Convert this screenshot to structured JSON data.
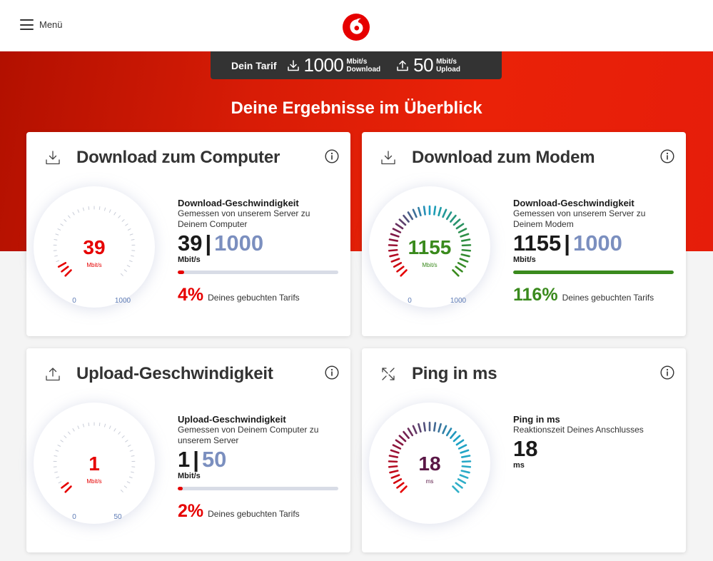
{
  "header": {
    "menu_label": "Menü",
    "logo_icon": "vodafone-logo"
  },
  "tariff": {
    "label": "Dein Tarif",
    "download_value": "1000",
    "download_unit": "Mbit/s",
    "download_label": "Download",
    "upload_value": "50",
    "upload_unit": "Mbit/s",
    "upload_label": "Upload"
  },
  "headline": "Deine Ergebnisse im Überblick",
  "cards": {
    "download_computer": {
      "title": "Download zum Computer",
      "icon": "download-icon",
      "gauge_value": "39",
      "gauge_unit": "Mbit/s",
      "gauge_min": "0",
      "gauge_max": "1000",
      "stat_title": "Download-Geschwindigkeit",
      "stat_sub": "Gemessen von unserem Server zu Deinem Computer",
      "value": "39",
      "max": "1000",
      "unit": "Mbit/s",
      "fill_fraction": 0.04,
      "percent": "4%",
      "percent_text": "Deines gebuchten Tarifs",
      "color": "#e60000"
    },
    "download_modem": {
      "title": "Download zum Modem",
      "icon": "download-icon",
      "gauge_value": "1155",
      "gauge_unit": "Mbit/s",
      "gauge_min": "0",
      "gauge_max": "1000",
      "stat_title": "Download-Geschwindigkeit",
      "stat_sub": "Gemessen von unserem Server zu Deinem Modem",
      "value": "1155",
      "max": "1000",
      "unit": "Mbit/s",
      "fill_fraction": 1.0,
      "percent": "116%",
      "percent_text": "Deines gebuchten Tarifs",
      "color": "#3a8a1d"
    },
    "upload": {
      "title": "Upload-Geschwindigkeit",
      "icon": "upload-icon",
      "gauge_value": "1",
      "gauge_unit": "Mbit/s",
      "gauge_min": "0",
      "gauge_max": "50",
      "stat_title": "Upload-Geschwindigkeit",
      "stat_sub": "Gemessen von Deinem Computer zu unserem Server",
      "value": "1",
      "max": "50",
      "unit": "Mbit/s",
      "fill_fraction": 0.02,
      "percent": "2%",
      "percent_text": "Deines gebuchten Tarifs",
      "color": "#e60000"
    },
    "ping": {
      "title": "Ping in ms",
      "icon": "ping-arrows-icon",
      "gauge_value": "18",
      "gauge_unit": "ms",
      "stat_title": "Ping in ms",
      "stat_sub": "Reaktionszeit Deines Anschlusses",
      "value": "18",
      "unit": "ms",
      "color": "#5a1746"
    }
  }
}
